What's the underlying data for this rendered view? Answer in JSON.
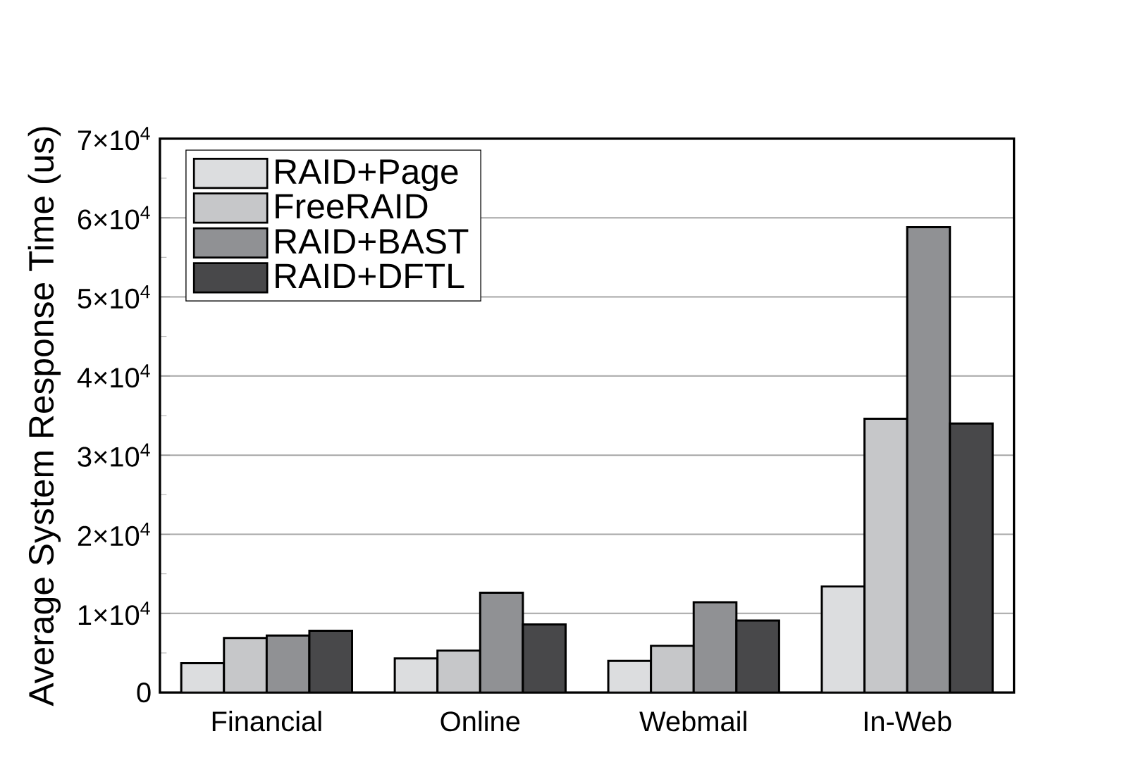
{
  "chart_data": {
    "type": "bar",
    "ylabel": "Average System Response Time (us)",
    "categories": [
      "Financial",
      "Online",
      "Webmail",
      "In-Web"
    ],
    "series": [
      {
        "name": "RAID+Page",
        "color": "#dcdddf",
        "values": [
          3700,
          4300,
          4000,
          13400
        ]
      },
      {
        "name": "FreeRAID",
        "color": "#c6c7c9",
        "values": [
          6900,
          5300,
          5900,
          34600
        ]
      },
      {
        "name": "RAID+BAST",
        "color": "#909194",
        "values": [
          7200,
          12600,
          11400,
          58800
        ]
      },
      {
        "name": "RAID+DFTL",
        "color": "#48484a",
        "values": [
          7800,
          8600,
          9100,
          34000
        ]
      }
    ],
    "ylim": [
      0,
      70000
    ],
    "yticks": [
      0,
      {
        "value": 10000,
        "label": "1×10$^{4}$"
      },
      {
        "value": 20000,
        "label": "2×10$^{4}$"
      },
      {
        "value": 30000,
        "label": "3×10$^{4}$"
      },
      {
        "value": 40000,
        "label": "4×10$^{4}$"
      },
      {
        "value": 50000,
        "label": "5×10$^{4}$"
      },
      {
        "value": 60000,
        "label": "6×10$^{4}$"
      },
      {
        "value": 70000,
        "label": "7×10$^{4}$"
      }
    ],
    "grid": "y",
    "legend": "top left"
  }
}
